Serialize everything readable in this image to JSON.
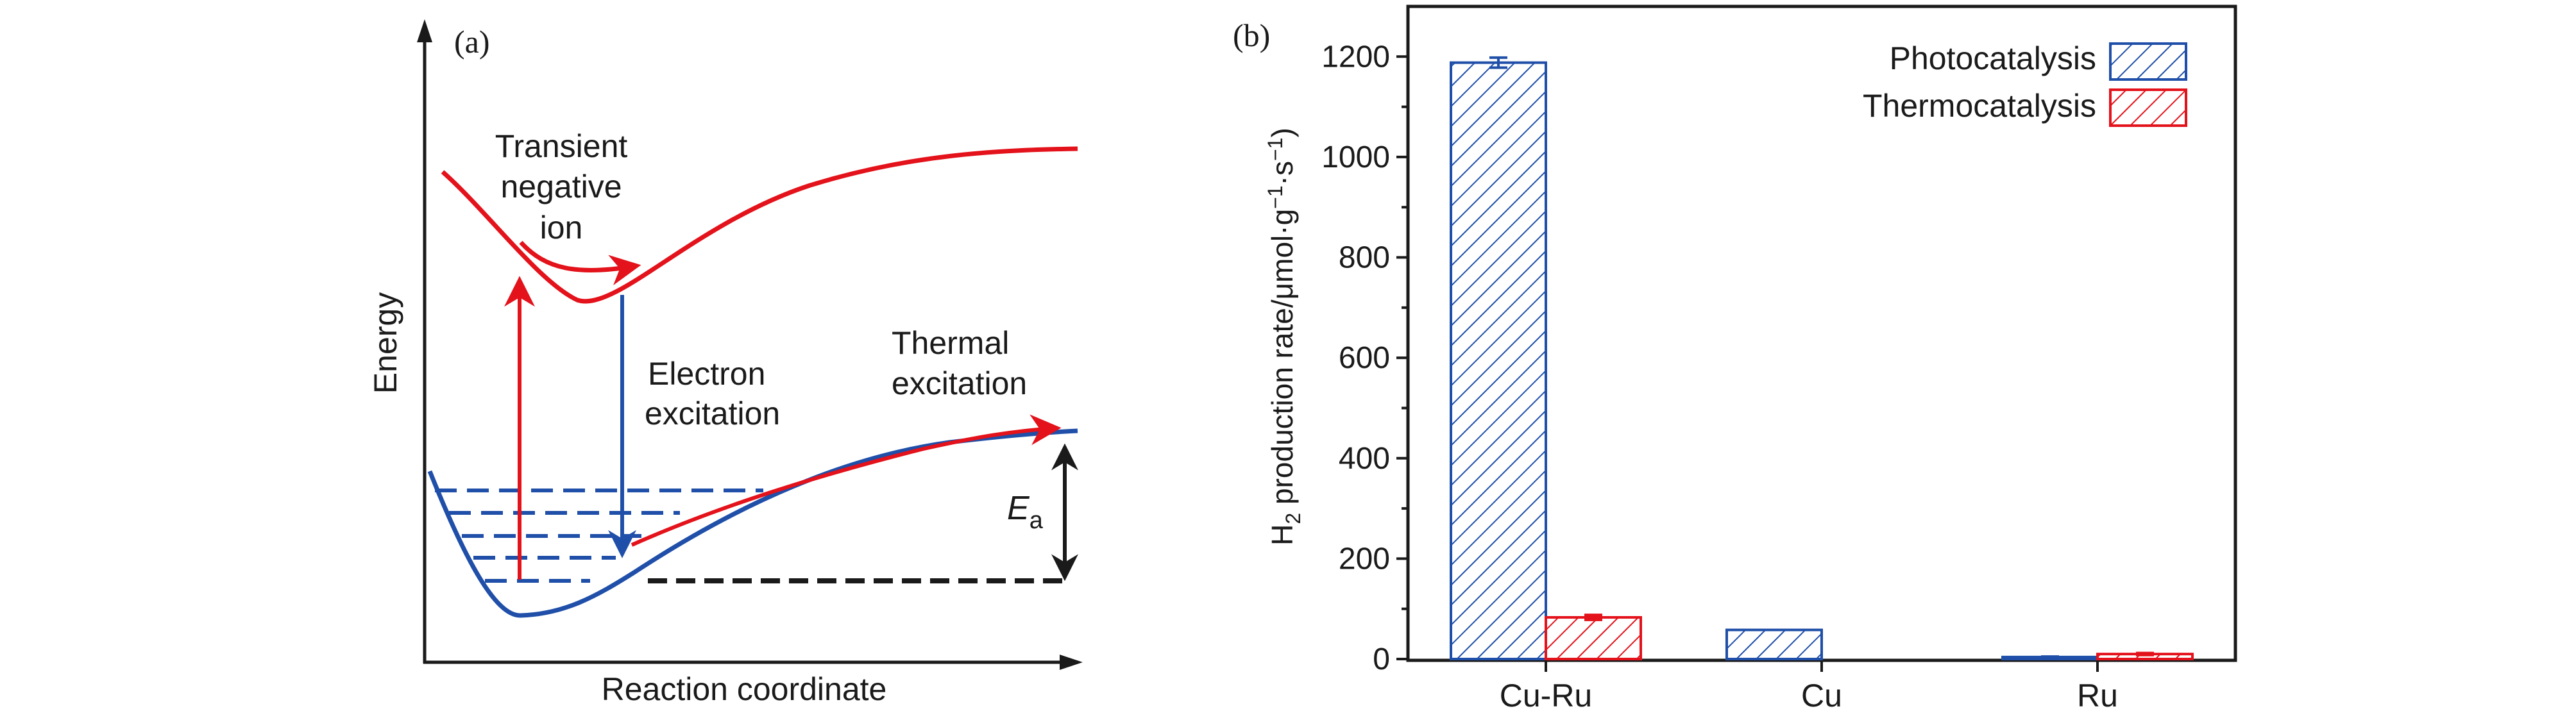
{
  "panel_a": {
    "label": "(a)",
    "y_axis_label": "Energy",
    "x_axis_label": "Reaction coordinate",
    "annotations": {
      "transient_line1": "Transient",
      "transient_line2": "negative",
      "transient_line3": "ion",
      "electron_line1": "Electron",
      "electron_line2": "excitation",
      "thermal_line1": "Thermal",
      "thermal_line2": "excitation",
      "ea_main": "E",
      "ea_sub": "a"
    },
    "colors": {
      "red": "#e3121b",
      "blue": "#1f4fa8",
      "black": "#1a1a1a"
    }
  },
  "chart_data": {
    "type": "bar",
    "panel_label": "(b)",
    "categories": [
      "Cu-Ru",
      "Cu",
      "Ru"
    ],
    "series": [
      {
        "name": "Photocatalysis",
        "values": [
          1188,
          58,
          4
        ],
        "errors": [
          10,
          0,
          1
        ],
        "color": "#1f4fa8",
        "pattern": "diagonal-hatch"
      },
      {
        "name": "Thermocatalysis",
        "values": [
          83,
          0,
          10
        ],
        "errors": [
          5,
          0,
          2
        ],
        "color": "#e3121b",
        "pattern": "diagonal-hatch"
      }
    ],
    "ylabel_parts": {
      "p1": "H",
      "s1": "2",
      "p2": " production rate/μmol·g",
      "s2": "−1",
      "p3": "·s",
      "s3": "−1",
      "p4": ")"
    },
    "ylim": [
      0,
      1300
    ],
    "yticks": [
      "0",
      "200",
      "400",
      "600",
      "800",
      "1000",
      "1200"
    ],
    "legend_position": "top-right",
    "grid": false
  }
}
